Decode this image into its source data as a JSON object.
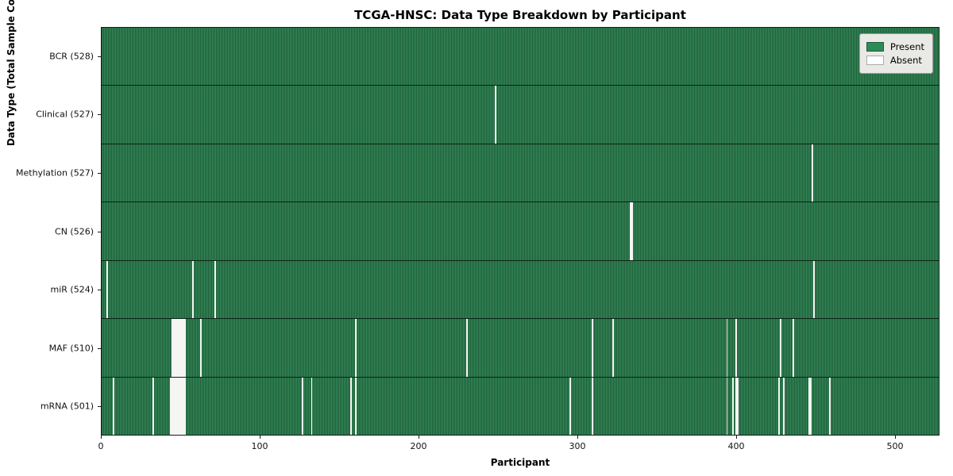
{
  "title": "TCGA-HNSC: Data Type Breakdown by Participant",
  "xlabel": "Participant",
  "ylabel": "Data Type (Total Sample Count)",
  "legend": {
    "present_label": "Present",
    "absent_label": "Absent"
  },
  "colors": {
    "present": "#2E8B57",
    "present_edge": "#1F5C3A",
    "absent": "#F5F5F3",
    "legend_bg": "#E9E9E6"
  },
  "chart_data": {
    "type": "heatmap",
    "title": "TCGA-HNSC: Data Type Breakdown by Participant",
    "xlabel": "Participant",
    "ylabel": "Data Type (Total Sample Count)",
    "legend_entries": [
      "Present",
      "Absent"
    ],
    "legend_position": "upper right",
    "x_range": [
      0,
      528
    ],
    "x_ticks": [
      0,
      100,
      200,
      300,
      400,
      500
    ],
    "total_participants": 528,
    "rows": [
      {
        "label": "BCR (528)",
        "data_type": "BCR",
        "present_count": 528,
        "absent_count": 0,
        "absent_participants": []
      },
      {
        "label": "Clinical (527)",
        "data_type": "Clinical",
        "present_count": 527,
        "absent_count": 1,
        "absent_participants": [
          248
        ]
      },
      {
        "label": "Methylation (527)",
        "data_type": "Methylation",
        "present_count": 527,
        "absent_count": 1,
        "absent_participants": [
          448
        ]
      },
      {
        "label": "CN (526)",
        "data_type": "CN",
        "present_count": 526,
        "absent_count": 2,
        "absent_participants": [
          333,
          334
        ]
      },
      {
        "label": "miR (524)",
        "data_type": "miR",
        "present_count": 524,
        "absent_count": 4,
        "absent_participants": [
          3,
          57,
          71,
          449
        ]
      },
      {
        "label": "MAF (510)",
        "data_type": "MAF",
        "present_count": 510,
        "absent_count": 18,
        "absent_participants": [
          44,
          45,
          46,
          47,
          48,
          49,
          50,
          51,
          52,
          62,
          160,
          230,
          309,
          322,
          394,
          400,
          428,
          436
        ]
      },
      {
        "label": "mRNA (501)",
        "data_type": "mRNA",
        "present_count": 501,
        "absent_count": 27,
        "absent_participants": [
          7,
          32,
          43,
          44,
          45,
          46,
          47,
          48,
          49,
          50,
          51,
          52,
          126,
          132,
          157,
          160,
          295,
          309,
          394,
          398,
          400,
          401,
          427,
          430,
          446,
          447,
          459
        ]
      }
    ]
  }
}
